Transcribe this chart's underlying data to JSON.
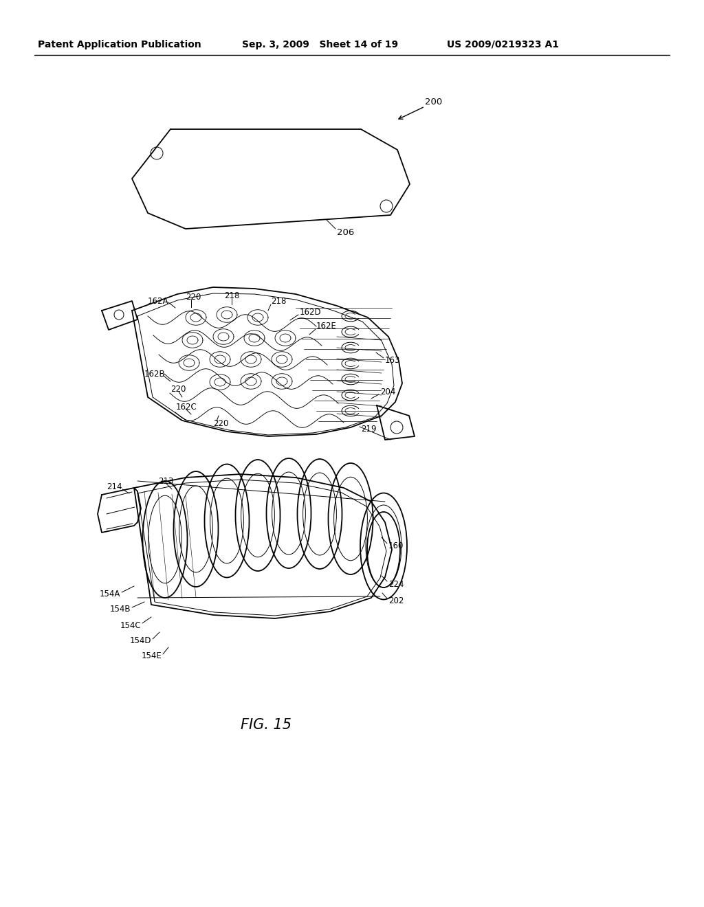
{
  "bg_color": "#ffffff",
  "text_color": "#000000",
  "header_left": "Patent Application Publication",
  "header_mid": "Sep. 3, 2009   Sheet 14 of 19",
  "header_right": "US 2009/0219323 A1",
  "figure_label": "FIG. 15",
  "lw_thin": 0.7,
  "lw_med": 1.3,
  "lw_thick": 2.0
}
